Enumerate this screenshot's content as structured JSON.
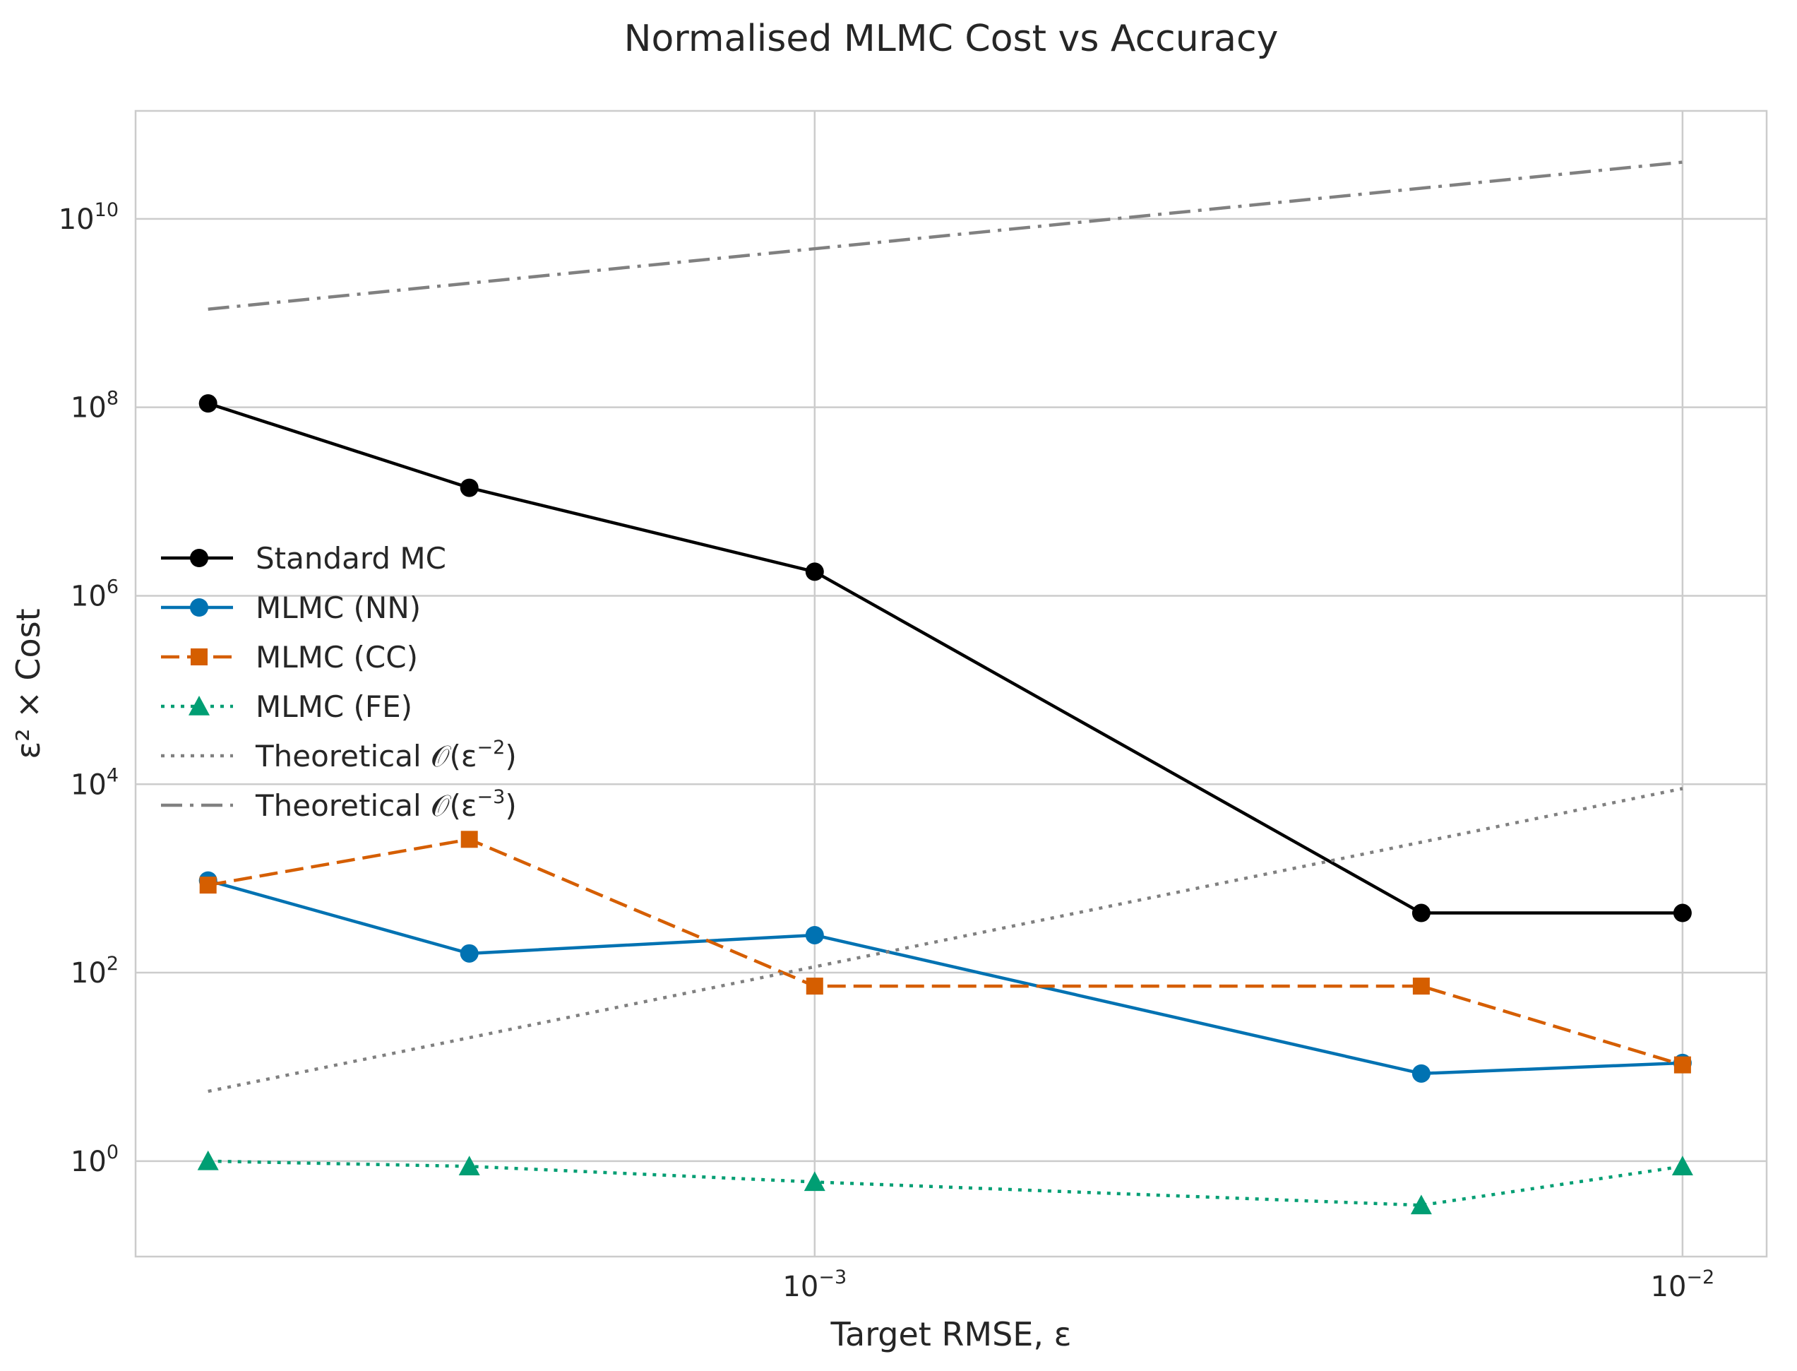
{
  "chart_data": {
    "type": "line",
    "title": "Normalised MLMC Cost vs Accuracy",
    "xlabel": "Target RMSE, ε",
    "ylabel": "ε² × Cost",
    "xscale": "log",
    "yscale": "log",
    "xlim": [
      0.000165,
      0.0125
    ],
    "ylim": [
      0.097,
      140000000000
    ],
    "x_ticks": [
      {
        "value": 0.001,
        "base": "10",
        "exp": "−3"
      },
      {
        "value": 0.01,
        "base": "10",
        "exp": "−2"
      }
    ],
    "y_ticks": [
      {
        "value": 1,
        "base": "10",
        "exp": "0"
      },
      {
        "value": 100,
        "base": "10",
        "exp": "2"
      },
      {
        "value": 10000,
        "base": "10",
        "exp": "4"
      },
      {
        "value": 1000000,
        "base": "10",
        "exp": "6"
      },
      {
        "value": 100000000,
        "base": "10",
        "exp": "8"
      },
      {
        "value": 10000000000,
        "base": "10",
        "exp": "10"
      }
    ],
    "grid": true,
    "legend_position": "center-left",
    "series": [
      {
        "name": "Standard MC",
        "color": "#000000",
        "dash": "solid",
        "marker": "circle",
        "x": [
          0.0002,
          0.0004,
          0.001,
          0.005,
          0.01
        ],
        "y": [
          110000000,
          14000000,
          1800000,
          430,
          430
        ]
      },
      {
        "name": "MLMC (NN)",
        "color": "#0072b2",
        "dash": "solid",
        "marker": "circle",
        "x": [
          0.0002,
          0.0004,
          0.001,
          0.005,
          0.01
        ],
        "y": [
          950,
          160,
          250,
          8.5,
          11
        ]
      },
      {
        "name": "MLMC (CC)",
        "color": "#d55e00",
        "dash": "dashed",
        "marker": "square",
        "x": [
          0.0002,
          0.0004,
          0.001,
          0.005,
          0.01
        ],
        "y": [
          850,
          2600,
          72,
          72,
          10.5
        ]
      },
      {
        "name": "MLMC (FE)",
        "color": "#009e73",
        "dash": "dotted",
        "marker": "triangle",
        "x": [
          0.0002,
          0.0004,
          0.001,
          0.005,
          0.01
        ],
        "y": [
          1.0,
          0.88,
          0.6,
          0.34,
          0.88
        ]
      },
      {
        "name": "Theoretical 𝒪(ε⁻²)",
        "label_base": "Theoretical 𝒪(ε",
        "label_exp": "−2",
        "label_tail": ")",
        "color": "#808080",
        "dash": "dotted",
        "marker": "none",
        "x": [
          0.0002,
          0.01
        ],
        "y": [
          5.5,
          9000
        ]
      },
      {
        "name": "Theoretical 𝒪(ε⁻³)",
        "label_base": "Theoretical 𝒪(ε",
        "label_exp": "−3",
        "label_tail": ")",
        "color": "#808080",
        "dash": "dashdot",
        "marker": "none",
        "x": [
          0.0002,
          0.01
        ],
        "y": [
          1100000000,
          40000000000
        ]
      }
    ]
  }
}
